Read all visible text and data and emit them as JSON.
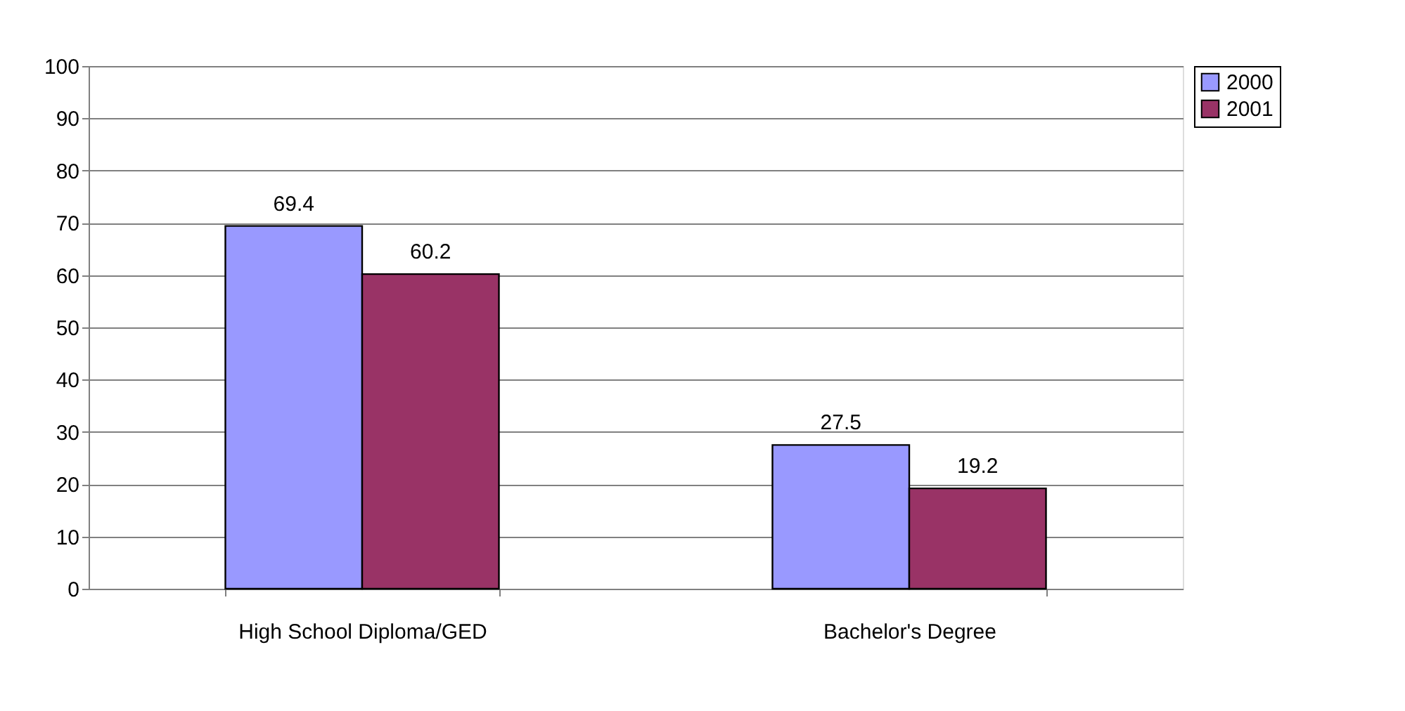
{
  "chart_data": {
    "type": "bar",
    "categories": [
      "High School Diploma/GED",
      "Bachelor's Degree"
    ],
    "series": [
      {
        "name": "2000",
        "color": "#9999ff",
        "values": [
          69.4,
          27.5
        ]
      },
      {
        "name": "2001",
        "color": "#993366",
        "values": [
          60.2,
          19.2
        ]
      }
    ],
    "ylim": [
      0,
      100
    ],
    "yticks": [
      0,
      10,
      20,
      30,
      40,
      50,
      60,
      70,
      80,
      90,
      100
    ],
    "grid": "y",
    "legend": "right",
    "data_labels": true
  }
}
